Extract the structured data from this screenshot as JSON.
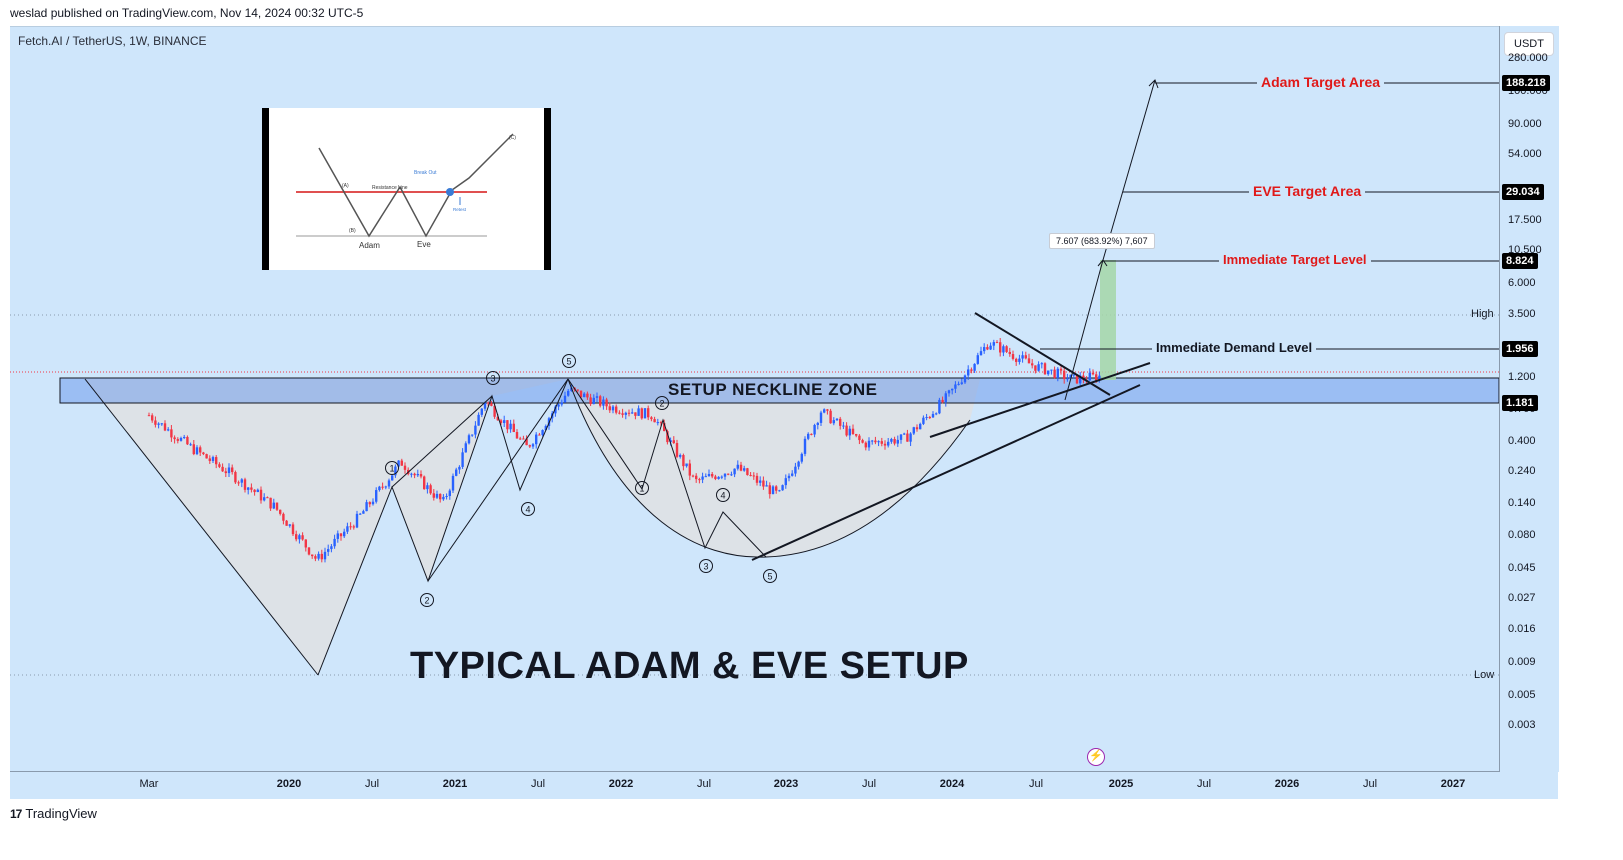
{
  "header": {
    "publisher": "weslad published on TradingView.com, Nov 14, 2024 00:32 UTC-5",
    "symbol": "Fetch.AI / TetherUS, 1W, BINANCE"
  },
  "price_axis": {
    "currency": "USDT",
    "ticks": [
      "280.000",
      "100.000",
      "90.000",
      "54.000",
      "17.500",
      "10.500",
      "6.000",
      "3.500",
      "1.200",
      "0.700",
      "0.400",
      "0.240",
      "0.140",
      "0.080",
      "0.045",
      "0.027",
      "0.016",
      "0.009",
      "0.005",
      "0.003"
    ],
    "badges": [
      "188.218",
      "29.034",
      "8.824",
      "1.956",
      "1.181"
    ],
    "high_label": "High",
    "low_label": "Low"
  },
  "time_axis": {
    "ticks": [
      "Mar",
      "2020",
      "Jul",
      "2021",
      "Jul",
      "2022",
      "Jul",
      "2023",
      "Jul",
      "2024",
      "Jul",
      "2025",
      "Jul",
      "2026",
      "Jul",
      "2027"
    ]
  },
  "annotations": {
    "adam_target": "Adam Target Area",
    "eve_target": "EVE Target Area",
    "immediate_target": "Immediate Target Level",
    "immediate_demand": "Immediate Demand Level",
    "neckline": "SETUP NECKLINE ZONE",
    "title": "TYPICAL ADAM & EVE SETUP",
    "measure": "7.607 (683.92%) 7,607",
    "wave_numbers": [
      "1",
      "2",
      "3",
      "4",
      "5",
      "1",
      "2",
      "3",
      "4",
      "5"
    ]
  },
  "inset": {
    "resistance_label": "Resistance Line",
    "breakout_label": "Break Out",
    "retest_label": "Retest",
    "point_a": "(A)",
    "point_b": "(B)",
    "point_c": "(C)",
    "adam_label": "Adam",
    "eve_label": "Eve"
  },
  "footer": {
    "brand": "TradingView"
  },
  "colors": {
    "background": "#cfe6fb",
    "bull": "#2962ff",
    "bear": "#f23645",
    "target_text": "#e01919",
    "neckline_zone": "#5b8de8",
    "measure_fill": "#a5d6a7"
  },
  "chart_data": {
    "type": "candlestick",
    "scale": "log",
    "x": [
      "2019-03",
      "2019-06",
      "2019-09",
      "2019-12",
      "2020-03",
      "2020-06",
      "2020-09",
      "2020-12",
      "2021-03",
      "2021-06",
      "2021-09",
      "2021-12",
      "2022-03",
      "2022-06",
      "2022-09",
      "2022-12",
      "2023-03",
      "2023-06",
      "2023-09",
      "2023-12",
      "2024-03",
      "2024-06",
      "2024-09",
      "2024-11"
    ],
    "y": [
      0.45,
      0.2,
      0.1,
      0.045,
      0.012,
      0.035,
      0.14,
      0.05,
      0.65,
      0.2,
      0.85,
      0.55,
      0.45,
      0.085,
      0.12,
      0.06,
      0.5,
      0.22,
      0.25,
      0.7,
      2.8,
      1.6,
      1.1,
      1.2
    ],
    "levels": [
      {
        "label": "Adam Target Area",
        "value": 188.218
      },
      {
        "label": "EVE Target Area",
        "value": 29.034
      },
      {
        "label": "Immediate Target Level",
        "value": 8.824
      },
      {
        "label": "Immediate Demand Level",
        "value": 1.956
      },
      {
        "label": "SETUP NECKLINE ZONE",
        "value": 1.181
      }
    ]
  }
}
